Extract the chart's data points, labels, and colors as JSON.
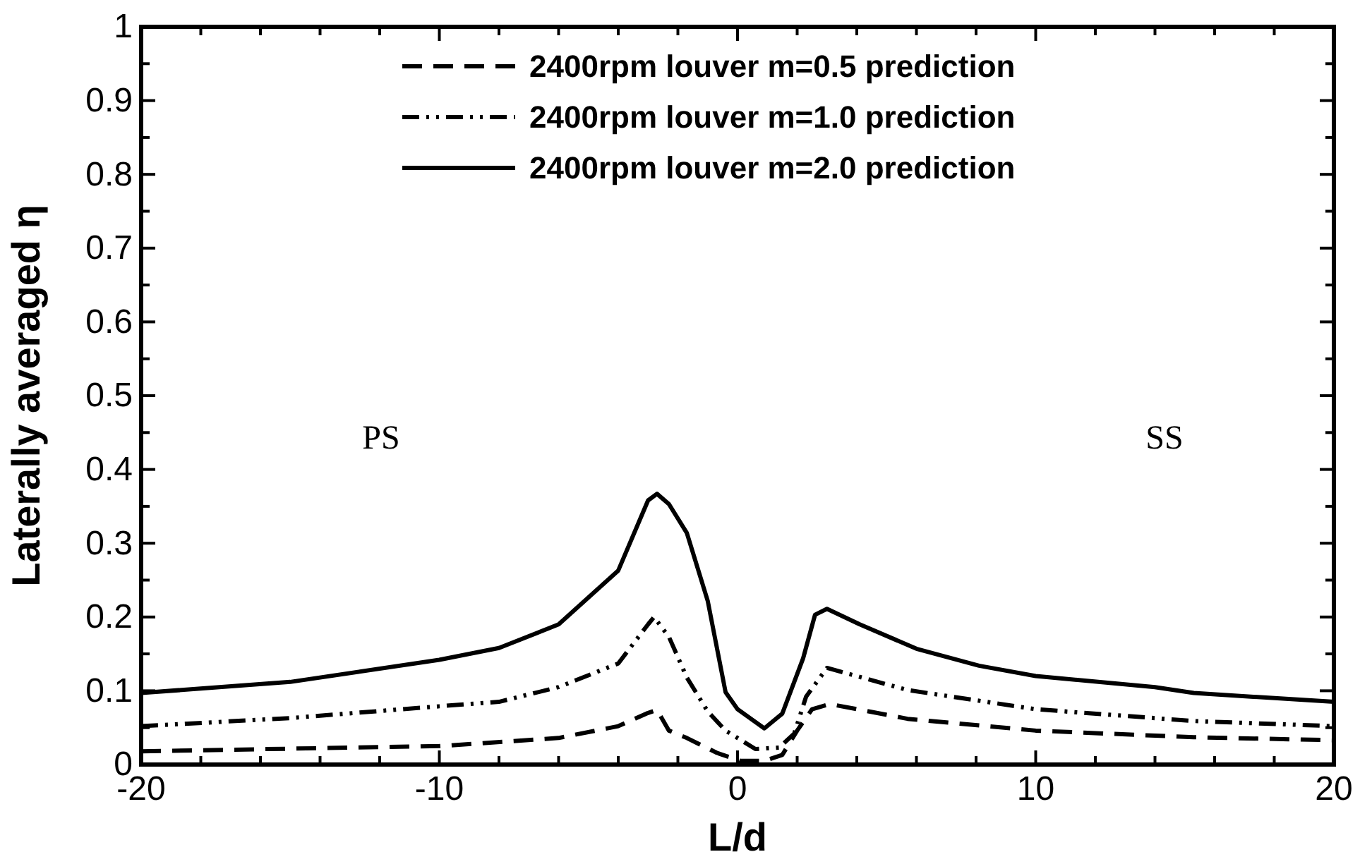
{
  "chart_data": {
    "type": "line",
    "xlabel": "L/d",
    "ylabel": "Laterally averaged η",
    "xlim": [
      -20,
      20
    ],
    "ylim": [
      0,
      1
    ],
    "xticks": [
      -20,
      {
        "value": -18,
        "label": null
      },
      {
        "value": -16,
        "label": null
      },
      {
        "value": -14,
        "label": null
      },
      {
        "value": -12,
        "label": null
      },
      -10,
      {
        "value": -8,
        "label": null
      },
      {
        "value": -6,
        "label": null
      },
      {
        "value": -4,
        "label": null
      },
      {
        "value": -2,
        "label": null
      },
      0,
      {
        "value": 2,
        "label": null
      },
      {
        "value": 4,
        "label": null
      },
      {
        "value": 6,
        "label": null
      },
      {
        "value": 8,
        "label": null
      },
      10,
      {
        "value": 12,
        "label": null
      },
      {
        "value": 14,
        "label": null
      },
      {
        "value": 16,
        "label": null
      },
      {
        "value": 18,
        "label": null
      },
      20
    ],
    "yticks": [
      0,
      {
        "value": 0.05,
        "label": null
      },
      0.1,
      {
        "value": 0.15,
        "label": null
      },
      0.2,
      {
        "value": 0.25,
        "label": null
      },
      0.3,
      {
        "value": 0.35,
        "label": null
      },
      0.4,
      {
        "value": 0.45,
        "label": null
      },
      0.5,
      {
        "value": 0.55,
        "label": null
      },
      0.6,
      {
        "value": 0.65,
        "label": null
      },
      0.7,
      {
        "value": 0.75,
        "label": null
      },
      0.8,
      {
        "value": 0.85,
        "label": null
      },
      0.9,
      {
        "value": 0.95,
        "label": null
      },
      1
    ],
    "grid": false,
    "legend": "top",
    "marker": "none",
    "annotations": [
      "PS",
      "SS"
    ],
    "series": [
      {
        "name": "2400rpm louver m=0.5 prediction",
        "color": "#000000",
        "line_style": "dashed",
        "x": [
          -20,
          -10,
          -6,
          -4,
          -3,
          -2.7,
          -2.3,
          -1.7,
          -0.7,
          0.1,
          0.9,
          1.5,
          2,
          2.5,
          3.1,
          5.7,
          10,
          15.3,
          20
        ],
        "values": [
          0.018,
          0.025,
          0.036,
          0.052,
          0.07,
          0.074,
          0.046,
          0.036,
          0.016,
          0.005,
          0.005,
          0.013,
          0.046,
          0.075,
          0.082,
          0.062,
          0.046,
          0.037,
          0.033
        ]
      },
      {
        "name": "2400rpm louver m=1.0 prediction",
        "color": "#000000",
        "line_style": "dashdot",
        "x": [
          -20,
          -15,
          -10,
          -8,
          -6,
          -4,
          -3,
          -2.8,
          -2.3,
          -1.7,
          -1,
          -0.4,
          0.6,
          1.4,
          1.9,
          2.3,
          3,
          5.7,
          10,
          15.3,
          20
        ],
        "values": [
          0.052,
          0.063,
          0.079,
          0.085,
          0.105,
          0.137,
          0.19,
          0.2,
          0.173,
          0.118,
          0.072,
          0.046,
          0.021,
          0.023,
          0.042,
          0.092,
          0.131,
          0.101,
          0.075,
          0.059,
          0.052
        ]
      },
      {
        "name": "2400rpm louver m=2.0 prediction",
        "color": "#000000",
        "line_style": "solid",
        "x": [
          -20,
          -15,
          -10,
          -8,
          -6,
          -4,
          -3,
          -2.7,
          -2.3,
          -1.7,
          -1,
          -0.4,
          0,
          0.9,
          1.5,
          2.2,
          2.6,
          3,
          4.1,
          6,
          8.1,
          10,
          14,
          15.3,
          20
        ],
        "values": [
          0.097,
          0.112,
          0.142,
          0.158,
          0.19,
          0.263,
          0.358,
          0.367,
          0.353,
          0.314,
          0.222,
          0.098,
          0.075,
          0.049,
          0.069,
          0.144,
          0.203,
          0.211,
          0.19,
          0.157,
          0.134,
          0.12,
          0.105,
          0.097,
          0.085
        ]
      }
    ]
  }
}
